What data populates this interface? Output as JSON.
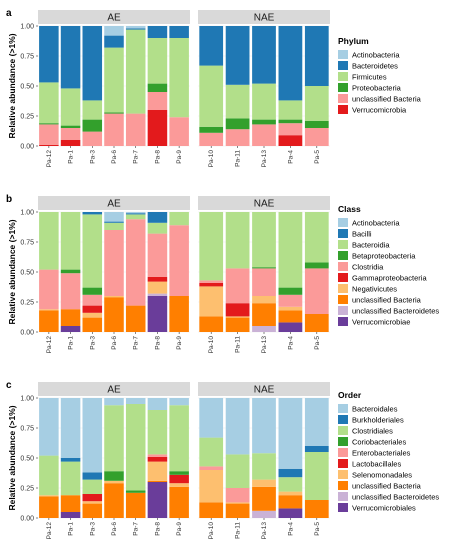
{
  "chart_data": [
    {
      "panel": "a",
      "type": "bar",
      "ylabel": "Relative abundance (>1%)",
      "yticks": [
        "0.00",
        "0.25",
        "0.50",
        "0.75",
        "1.00"
      ],
      "ylim": [
        0,
        1
      ],
      "legend": {
        "title": "Phylum",
        "position": "right"
      },
      "categories_order": [
        "Actinobacteria",
        "Bacteroidetes",
        "Firmicutes",
        "Proteobacteria",
        "unclassified Bacteria",
        "Verrucomicrobia"
      ],
      "colors": [
        "#a6cee3",
        "#1f78b4",
        "#b2df8a",
        "#33a02c",
        "#fb9a99",
        "#e31a1c"
      ],
      "facets": [
        {
          "label": "AE",
          "samples": [
            {
              "name": "Pa-12",
              "values": [
                0,
                0.47,
                0.34,
                0.01,
                0.17,
                0.01
              ]
            },
            {
              "name": "Pa-1",
              "values": [
                0,
                0.52,
                0.31,
                0.02,
                0.1,
                0.05
              ]
            },
            {
              "name": "Pa-3",
              "values": [
                0,
                0.62,
                0.16,
                0.1,
                0.12,
                0
              ]
            },
            {
              "name": "Pa-6",
              "values": [
                0.08,
                0.1,
                0.54,
                0.01,
                0.27,
                0
              ]
            },
            {
              "name": "Pa-7",
              "values": [
                0.02,
                0.01,
                0.7,
                0,
                0.27,
                0
              ]
            },
            {
              "name": "Pa-8",
              "values": [
                0,
                0.1,
                0.38,
                0.07,
                0.15,
                0.3
              ]
            },
            {
              "name": "Pa-9",
              "values": [
                0,
                0.1,
                0.66,
                0,
                0.24,
                0
              ]
            }
          ]
        },
        {
          "label": "NAE",
          "samples": [
            {
              "name": "Pa-10",
              "values": [
                0,
                0.33,
                0.51,
                0.05,
                0.11,
                0
              ]
            },
            {
              "name": "Pa-11",
              "values": [
                0,
                0.49,
                0.28,
                0.09,
                0.14,
                0
              ]
            },
            {
              "name": "Pa-13",
              "values": [
                0,
                0.48,
                0.3,
                0.04,
                0.18,
                0
              ]
            },
            {
              "name": "Pa-4",
              "values": [
                0,
                0.62,
                0.16,
                0.03,
                0.1,
                0.09
              ]
            },
            {
              "name": "Pa-5",
              "values": [
                0,
                0.5,
                0.29,
                0.06,
                0.15,
                0
              ]
            }
          ]
        }
      ]
    },
    {
      "panel": "b",
      "type": "bar",
      "ylabel": "Relative abundance (>1%)",
      "yticks": [
        "0.00",
        "0.25",
        "0.50",
        "0.75",
        "1.00"
      ],
      "ylim": [
        0,
        1
      ],
      "legend": {
        "title": "Class",
        "position": "right"
      },
      "categories_order": [
        "Actinobacteria",
        "Bacilli",
        "Bacteroidia",
        "Betaproteobacteria",
        "Clostridia",
        "Gammaproteobacteria",
        "Negativicutes",
        "unclassified Bacteria",
        "unclassified Bacteroidetes",
        "Verrucomicrobiae"
      ],
      "colors": [
        "#a6cee3",
        "#1f78b4",
        "#b2df8a",
        "#33a02c",
        "#fb9a99",
        "#e31a1c",
        "#fdbf6f",
        "#ff7f00",
        "#cab2d6",
        "#6a3d9a"
      ],
      "facets": [
        {
          "label": "AE",
          "samples": [
            {
              "name": "Pa-12",
              "values": [
                0,
                0,
                0.48,
                0,
                0.33,
                0,
                0.01,
                0.18,
                0,
                0
              ]
            },
            {
              "name": "Pa-1",
              "values": [
                0,
                0,
                0.48,
                0.03,
                0.3,
                0,
                0,
                0.14,
                0,
                0.05
              ]
            },
            {
              "name": "Pa-3",
              "values": [
                0,
                0.02,
                0.61,
                0.06,
                0.09,
                0.06,
                0.04,
                0.12,
                0,
                0
              ]
            },
            {
              "name": "Pa-6",
              "values": [
                0.08,
                0.01,
                0.06,
                0,
                0.55,
                0,
                0.01,
                0.29,
                0,
                0
              ]
            },
            {
              "name": "Pa-7",
              "values": [
                0.01,
                0.01,
                0.04,
                0,
                0.72,
                0,
                0,
                0.22,
                0,
                0
              ]
            },
            {
              "name": "Pa-8",
              "values": [
                0,
                0.09,
                0.09,
                0,
                0.36,
                0.04,
                0.1,
                0,
                0.02,
                0.3
              ]
            },
            {
              "name": "Pa-9",
              "values": [
                0,
                0,
                0.11,
                0,
                0.59,
                0,
                0,
                0.3,
                0,
                0
              ]
            }
          ]
        },
        {
          "label": "NAE",
          "samples": [
            {
              "name": "Pa-10",
              "values": [
                0,
                0,
                0.57,
                0,
                0.02,
                0.03,
                0.25,
                0.13,
                0,
                0
              ]
            },
            {
              "name": "Pa-11",
              "values": [
                0,
                0,
                0.47,
                0,
                0.29,
                0.11,
                0.01,
                0.12,
                0,
                0
              ]
            },
            {
              "name": "Pa-13",
              "values": [
                0,
                0,
                0.46,
                0.01,
                0.23,
                0,
                0.06,
                0.19,
                0.05,
                0
              ]
            },
            {
              "name": "Pa-4",
              "values": [
                0,
                0,
                0.63,
                0.06,
                0.1,
                0,
                0.03,
                0.1,
                0,
                0.08
              ]
            },
            {
              "name": "Pa-5",
              "values": [
                0,
                0,
                0.42,
                0.05,
                0.38,
                0,
                0,
                0.15,
                0,
                0
              ]
            }
          ]
        }
      ]
    },
    {
      "panel": "c",
      "type": "bar",
      "ylabel": "Relative abundance (>1%)",
      "yticks": [
        "0.00",
        "0.25",
        "0.50",
        "0.75",
        "1.00"
      ],
      "ylim": [
        0,
        1
      ],
      "legend": {
        "title": "Order",
        "position": "right"
      },
      "categories_order": [
        "Bacteroidales",
        "Burkholderiales",
        "Clostridiales",
        "Coriobacteriales",
        "Enterobacteriales",
        "Lactobacillales",
        "Selenomonadales",
        "unclassified Bacteria",
        "unclassified Bacteroidetes",
        "Verrucomicrobiales"
      ],
      "colors": [
        "#a6cee3",
        "#1f78b4",
        "#b2df8a",
        "#33a02c",
        "#fb9a99",
        "#e31a1c",
        "#fdbf6f",
        "#ff7f00",
        "#cab2d6",
        "#6a3d9a"
      ],
      "facets": [
        {
          "label": "AE",
          "samples": [
            {
              "name": "Pa-12",
              "values": [
                0.48,
                0,
                0.33,
                0,
                0,
                0,
                0.01,
                0.18,
                0,
                0
              ]
            },
            {
              "name": "Pa-1",
              "values": [
                0.5,
                0.03,
                0.28,
                0,
                0,
                0,
                0,
                0.14,
                0,
                0.05
              ]
            },
            {
              "name": "Pa-3",
              "values": [
                0.62,
                0.06,
                0.12,
                0,
                0,
                0.06,
                0.02,
                0.12,
                0,
                0
              ]
            },
            {
              "name": "Pa-6",
              "values": [
                0.06,
                0,
                0.55,
                0.08,
                0,
                0,
                0.02,
                0.29,
                0,
                0
              ]
            },
            {
              "name": "Pa-7",
              "values": [
                0.05,
                0,
                0.72,
                0.02,
                0,
                0,
                0,
                0.21,
                0,
                0
              ]
            },
            {
              "name": "Pa-8",
              "values": [
                0.1,
                0,
                0.37,
                0,
                0.02,
                0.04,
                0.16,
                0.01,
                0,
                0.3
              ]
            },
            {
              "name": "Pa-9",
              "values": [
                0.06,
                0,
                0.55,
                0.03,
                0,
                0.07,
                0.03,
                0.26,
                0,
                0
              ]
            }
          ]
        },
        {
          "label": "NAE",
          "samples": [
            {
              "name": "Pa-10",
              "values": [
                0.33,
                0,
                0.24,
                0,
                0.03,
                0,
                0.27,
                0.13,
                0,
                0
              ]
            },
            {
              "name": "Pa-11",
              "values": [
                0.47,
                0,
                0.28,
                0,
                0.12,
                0,
                0.01,
                0.12,
                0,
                0
              ]
            },
            {
              "name": "Pa-13",
              "values": [
                0.46,
                0,
                0.22,
                0,
                0,
                0,
                0.06,
                0.2,
                0.06,
                0
              ]
            },
            {
              "name": "Pa-4",
              "values": [
                0.59,
                0.07,
                0.12,
                0,
                0,
                0,
                0.03,
                0.11,
                0,
                0.08
              ]
            },
            {
              "name": "Pa-5",
              "values": [
                0.4,
                0.05,
                0.4,
                0,
                0,
                0,
                0,
                0.15,
                0,
                0
              ]
            }
          ]
        }
      ]
    }
  ]
}
